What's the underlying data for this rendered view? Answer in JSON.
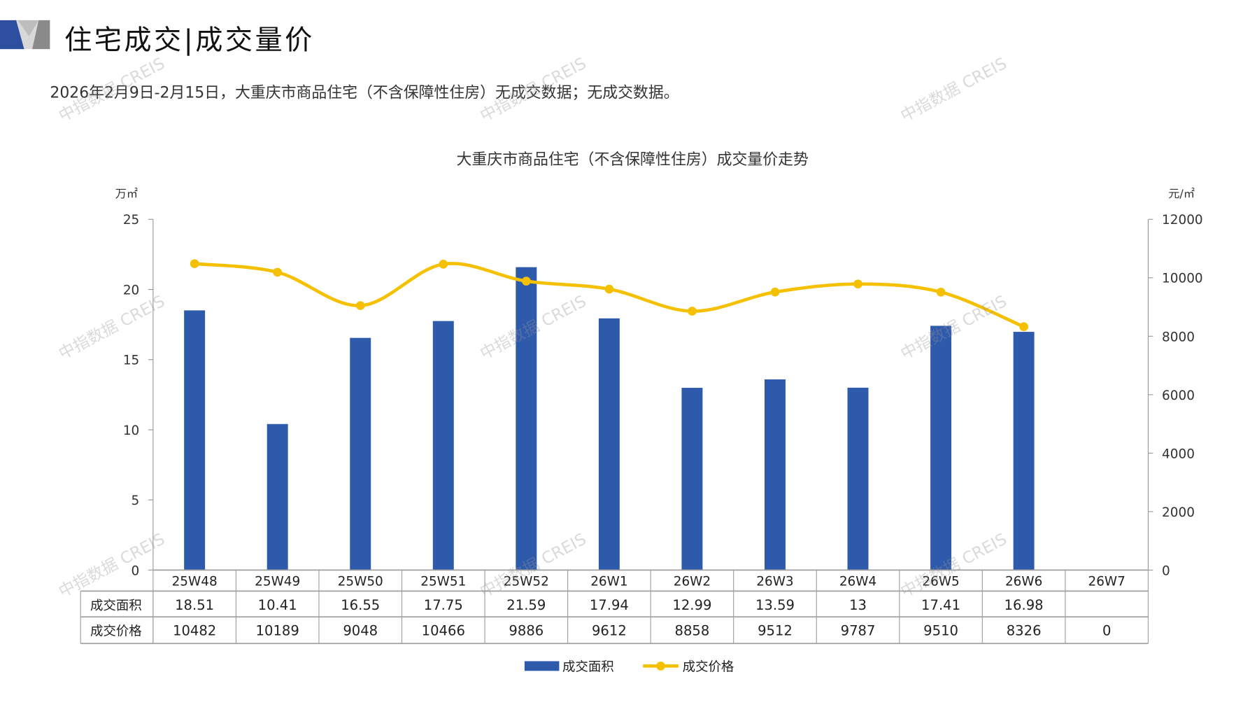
{
  "header": {
    "title": "住宅成交|成交量价",
    "subtitle": "2026年2月9日-2月15日，大重庆市商品住宅（不含保障性住房）无成交数据；无成交数据。"
  },
  "watermark": "中指数据 CREIS",
  "colors": {
    "bar": "#2E5AAC",
    "line": "#F5C000",
    "grid": "#999999"
  },
  "chart_data": {
    "type": "bar+line",
    "title": "大重庆市商品住宅（不含保障性住房）成交量价走势",
    "y_left_unit": "万㎡",
    "y_right_unit": "元/㎡",
    "y_left_range": [
      0,
      25
    ],
    "y_left_ticks": [
      "0",
      "5",
      "10",
      "15",
      "20",
      "25"
    ],
    "y_right_range": [
      0,
      12000
    ],
    "y_right_ticks": [
      "0",
      "2000",
      "4000",
      "6000",
      "8000",
      "10000",
      "12000"
    ],
    "categories": [
      "25W48",
      "25W49",
      "25W50",
      "25W51",
      "25W52",
      "26W1",
      "26W2",
      "26W3",
      "26W4",
      "26W5",
      "26W6",
      "26W7"
    ],
    "series": [
      {
        "name": "成交面积",
        "type": "bar",
        "axis": "left",
        "values": [
          18.51,
          10.41,
          16.55,
          17.75,
          21.59,
          17.94,
          12.99,
          13.59,
          13,
          17.41,
          16.98,
          null
        ],
        "labels": [
          "18.51",
          "10.41",
          "16.55",
          "17.75",
          "21.59",
          "17.94",
          "12.99",
          "13.59",
          "13",
          "17.41",
          "16.98",
          ""
        ]
      },
      {
        "name": "成交价格",
        "type": "line",
        "axis": "right",
        "values": [
          10482,
          10189,
          9048,
          10466,
          9886,
          9612,
          8858,
          9512,
          9787,
          9510,
          8326,
          0
        ],
        "labels": [
          "10482",
          "10189",
          "9048",
          "10466",
          "9886",
          "9612",
          "8858",
          "9512",
          "9787",
          "9510",
          "8326",
          "0"
        ]
      }
    ],
    "legend": "bottom"
  }
}
